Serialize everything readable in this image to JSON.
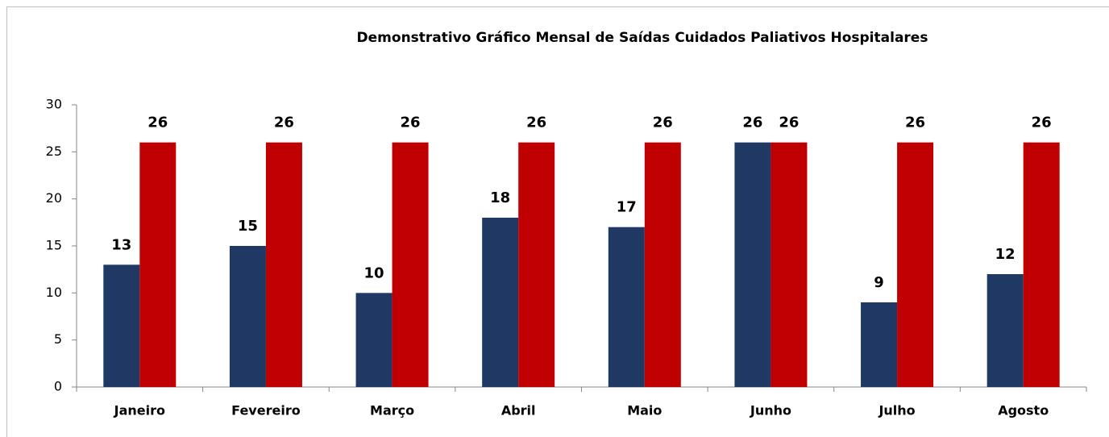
{
  "chart_data": {
    "type": "bar",
    "title": "Demonstrativo Gráfico Mensal de Saídas Cuidados Paliativos Hospitalares",
    "categories": [
      "Janeiro",
      "Fevereiro",
      "Março",
      "Abril",
      "Maio",
      "Junho",
      "Julho",
      "Agosto"
    ],
    "series": [
      {
        "color": "#1f3864",
        "values": [
          13,
          15,
          10,
          18,
          17,
          26,
          9,
          12
        ]
      },
      {
        "color": "#c00000",
        "values": [
          26,
          26,
          26,
          26,
          26,
          26,
          26,
          26
        ]
      }
    ],
    "ylim": [
      0,
      30
    ],
    "yticks": [
      0,
      5,
      10,
      15,
      20,
      25,
      30
    ],
    "grid": false
  }
}
